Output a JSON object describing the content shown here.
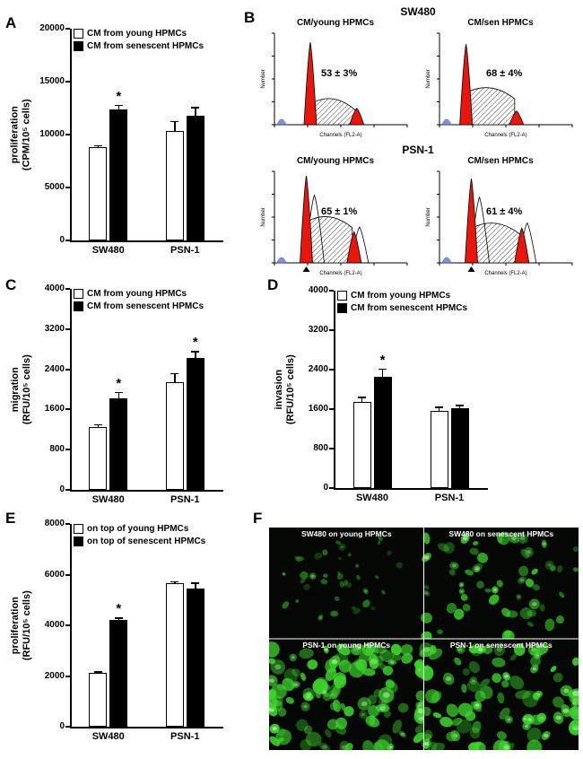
{
  "figure": {
    "panels": {
      "A": "A",
      "B": "B",
      "C": "C",
      "D": "D",
      "E": "E",
      "F": "F"
    }
  },
  "chart_data": [
    {
      "type": "bar",
      "panel": "A",
      "ylabel": [
        "proliferation",
        "(CPM/10⁵ cells)"
      ],
      "ylim": [
        0,
        20000
      ],
      "yticks": [
        0,
        5000,
        10000,
        15000,
        20000
      ],
      "categories": [
        "SW480",
        "PSN-1"
      ],
      "legend": [
        "CM from young HPMCs",
        "CM from senescent HPMCs"
      ],
      "series": [
        {
          "name": "CM from young HPMCs",
          "fill": "#ffffff",
          "values": [
            8800,
            10300
          ],
          "errors": [
            200,
            1000
          ]
        },
        {
          "name": "CM from senescent HPMCs",
          "fill": "#000000",
          "values": [
            12400,
            11800
          ],
          "errors": [
            400,
            800
          ]
        }
      ],
      "significance": [
        {
          "category": 0,
          "series": 1,
          "marker": "*"
        }
      ]
    },
    {
      "type": "bar",
      "panel": "C",
      "ylabel": [
        "migration",
        "(RFU/10⁵ cells)"
      ],
      "ylim": [
        0,
        4000
      ],
      "yticks": [
        0,
        800,
        1600,
        2400,
        3200,
        4000
      ],
      "categories": [
        "SW480",
        "PSN-1"
      ],
      "legend": [
        "CM from young HPMCs",
        "CM from senescent HPMCs"
      ],
      "series": [
        {
          "name": "CM from young HPMCs",
          "fill": "#ffffff",
          "values": [
            1250,
            2150
          ],
          "errors": [
            60,
            180
          ]
        },
        {
          "name": "CM from senescent HPMCs",
          "fill": "#000000",
          "values": [
            1830,
            2620
          ],
          "errors": [
            120,
            140
          ]
        }
      ],
      "significance": [
        {
          "category": 0,
          "series": 1,
          "marker": "*"
        },
        {
          "category": 1,
          "series": 1,
          "marker": "*"
        }
      ]
    },
    {
      "type": "bar",
      "panel": "D",
      "ylabel": [
        "invasion",
        "(RFU/10⁵ cells)"
      ],
      "ylim": [
        0,
        4000
      ],
      "yticks": [
        0,
        800,
        1600,
        2400,
        3200,
        4000
      ],
      "categories": [
        "SW480",
        "PSN-1"
      ],
      "legend": [
        "CM from young HPMCs",
        "CM from senescent HPMCs"
      ],
      "series": [
        {
          "name": "CM from young HPMCs",
          "fill": "#ffffff",
          "values": [
            1740,
            1560
          ],
          "errors": [
            110,
            90
          ]
        },
        {
          "name": "CM from senescent HPMCs",
          "fill": "#000000",
          "values": [
            2260,
            1620
          ],
          "errors": [
            160,
            70
          ]
        }
      ],
      "significance": [
        {
          "category": 0,
          "series": 1,
          "marker": "*"
        }
      ]
    },
    {
      "type": "bar",
      "panel": "E",
      "ylabel": [
        "proliferation",
        "(RFU/10⁵ cells)"
      ],
      "ylim": [
        0,
        8000
      ],
      "yticks": [
        0,
        2000,
        4000,
        6000,
        8000
      ],
      "categories": [
        "SW480",
        "PSN-1"
      ],
      "legend": [
        "on top of young HPMCs",
        "on top of senescent HPMCs"
      ],
      "series": [
        {
          "name": "on top of young HPMCs",
          "fill": "#ffffff",
          "values": [
            2120,
            5650
          ],
          "errors": [
            70,
            100
          ]
        },
        {
          "name": "on top of senescent HPMCs",
          "fill": "#000000",
          "values": [
            4200,
            5450
          ],
          "errors": [
            110,
            240
          ]
        }
      ],
      "significance": [
        {
          "category": 0,
          "series": 1,
          "marker": "*"
        }
      ]
    }
  ],
  "flow_data": {
    "type": "flow-cytometry-histograms",
    "xaxis_label": "Channels (FL2-A)",
    "yaxis_label": "Number",
    "groups": [
      {
        "title": "SW480",
        "plots": [
          {
            "label": "CM/young HPMCs",
            "percent": "53 ± 3%",
            "g1x": 0.27,
            "g1h": 0.9,
            "g2x": 0.62,
            "g2h": 0.18,
            "sh": 0.3,
            "ghost": false,
            "marker": false
          },
          {
            "label": "CM/sen HPMCs",
            "percent": "68 ± 4%",
            "g1x": 0.2,
            "g1h": 0.88,
            "g2x": 0.58,
            "g2h": 0.15,
            "sh": 0.42,
            "ghost": false,
            "marker": false
          }
        ]
      },
      {
        "title": "PSN-1",
        "plots": [
          {
            "label": "CM/young HPMCs",
            "percent": "65 ± 1%",
            "g1x": 0.24,
            "g1h": 0.95,
            "g2x": 0.6,
            "g2h": 0.34,
            "sh": 0.52,
            "ghost": true,
            "marker": true
          },
          {
            "label": "CM/sen HPMCs",
            "percent": "61 ± 4%",
            "g1x": 0.24,
            "g1h": 0.92,
            "g2x": 0.62,
            "g2h": 0.38,
            "sh": 0.45,
            "ghost": true,
            "marker": true
          }
        ]
      }
    ]
  },
  "microscopy": {
    "cell_color": "#3fd32f",
    "quadrants": [
      {
        "label": "SW480 on young HPMCs",
        "count": 38,
        "size": [
          2,
          5
        ],
        "brightness": 0.55,
        "spread": 0.5,
        "seed": 7
      },
      {
        "label": "SW480 on senescent HPMCs",
        "count": 60,
        "size": [
          3,
          7
        ],
        "brightness": 0.85,
        "spread": 0.95,
        "seed": 11
      },
      {
        "label": "PSN-1 on young HPMCs",
        "count": 120,
        "size": [
          4,
          9
        ],
        "brightness": 0.95,
        "spread": 1,
        "seed": 13
      },
      {
        "label": "PSN-1 on senescent HPMCs",
        "count": 100,
        "size": [
          4,
          9
        ],
        "brightness": 0.95,
        "spread": 1,
        "seed": 17
      }
    ]
  }
}
